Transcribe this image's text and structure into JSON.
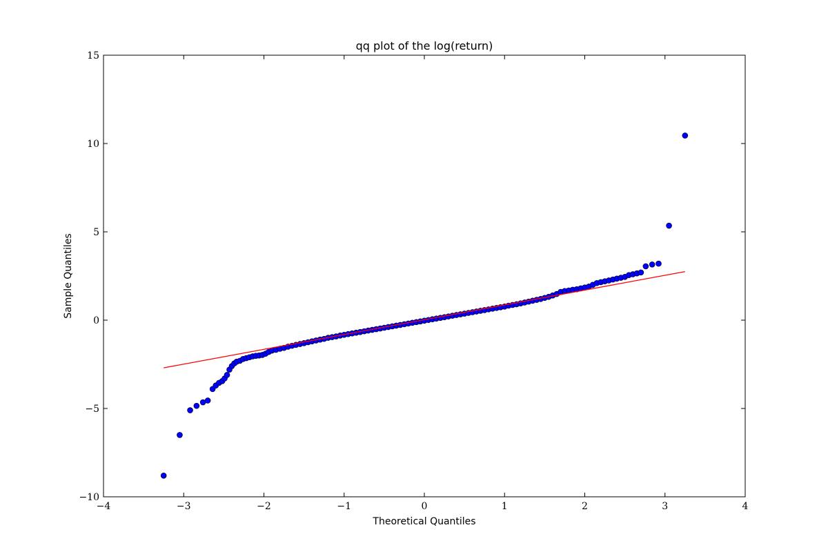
{
  "chart_data": {
    "type": "scatter",
    "title": "qq plot of the log(return)",
    "xlabel": "Theoretical Quantiles",
    "ylabel": "Sample Quantiles",
    "xlim": [
      -4,
      4
    ],
    "ylim": [
      -10,
      15
    ],
    "xticks": [
      -4,
      -3,
      -2,
      -1,
      0,
      1,
      2,
      3,
      4
    ],
    "yticks": [
      -10,
      -5,
      0,
      5,
      10,
      15
    ],
    "xtick_labels": [
      "−4",
      "−3",
      "−2",
      "−1",
      "0",
      "1",
      "2",
      "3",
      "4"
    ],
    "ytick_labels": [
      "−10",
      "−5",
      "0",
      "5",
      "10",
      "15"
    ],
    "grid": false,
    "colors": {
      "points": "#0000ff",
      "point_edge": "#000000",
      "fit_line": "#ff0000"
    },
    "reference_line": {
      "x": [
        -3.25,
        3.25
      ],
      "y": [
        -2.7,
        2.75
      ]
    },
    "series": [
      {
        "points": {
          "x": [
            -3.25,
            -3.05,
            -2.92,
            -2.84,
            -2.76,
            -2.7,
            -2.64,
            -2.6,
            -2.56,
            -2.52,
            -2.49,
            -2.46,
            -2.43,
            -2.4,
            -2.37,
            -2.34,
            -2.3,
            -2.26,
            -2.22,
            -2.18,
            -2.14,
            -2.1,
            -2.06,
            -2.02,
            -1.98,
            -1.94,
            -1.9,
            -1.85,
            -1.8,
            -1.75,
            -1.7,
            -1.65,
            -1.6,
            -1.55,
            -1.5,
            -1.45,
            -1.4,
            -1.35,
            -1.3,
            -1.25,
            -1.2,
            -1.15,
            -1.1,
            -1.05,
            -1.0,
            -0.95,
            -0.9,
            -0.85,
            -0.8,
            -0.75,
            -0.7,
            -0.65,
            -0.6,
            -0.55,
            -0.5,
            -0.45,
            -0.4,
            -0.35,
            -0.3,
            -0.25,
            -0.2,
            -0.15,
            -0.1,
            -0.05,
            0.0,
            0.05,
            0.1,
            0.15,
            0.2,
            0.25,
            0.3,
            0.35,
            0.4,
            0.45,
            0.5,
            0.55,
            0.6,
            0.65,
            0.7,
            0.75,
            0.8,
            0.85,
            0.9,
            0.95,
            1.0,
            1.05,
            1.1,
            1.15,
            1.2,
            1.25,
            1.3,
            1.35,
            1.4,
            1.45,
            1.5,
            1.55,
            1.6,
            1.65,
            1.7,
            1.75,
            1.8,
            1.85,
            1.9,
            1.95,
            2.0,
            2.05,
            2.1,
            2.15,
            2.2,
            2.25,
            2.3,
            2.35,
            2.4,
            2.45,
            2.5,
            2.55,
            2.6,
            2.65,
            2.7,
            2.76,
            2.84,
            2.92,
            3.05,
            3.25
          ],
          "y": [
            -8.8,
            -6.5,
            -5.1,
            -4.85,
            -4.65,
            -4.55,
            -3.9,
            -3.7,
            -3.55,
            -3.45,
            -3.3,
            -3.1,
            -2.8,
            -2.6,
            -2.45,
            -2.35,
            -2.3,
            -2.2,
            -2.15,
            -2.1,
            -2.05,
            -2.02,
            -2.0,
            -1.97,
            -1.9,
            -1.8,
            -1.72,
            -1.68,
            -1.62,
            -1.57,
            -1.5,
            -1.45,
            -1.4,
            -1.35,
            -1.3,
            -1.25,
            -1.2,
            -1.15,
            -1.1,
            -1.06,
            -1.0,
            -0.96,
            -0.92,
            -0.87,
            -0.83,
            -0.79,
            -0.75,
            -0.71,
            -0.67,
            -0.63,
            -0.59,
            -0.55,
            -0.51,
            -0.47,
            -0.43,
            -0.39,
            -0.35,
            -0.31,
            -0.27,
            -0.23,
            -0.19,
            -0.15,
            -0.11,
            -0.07,
            -0.03,
            0.01,
            0.05,
            0.09,
            0.13,
            0.17,
            0.21,
            0.25,
            0.29,
            0.33,
            0.37,
            0.41,
            0.45,
            0.49,
            0.53,
            0.57,
            0.61,
            0.65,
            0.69,
            0.73,
            0.77,
            0.82,
            0.86,
            0.9,
            0.95,
            1.0,
            1.05,
            1.1,
            1.15,
            1.2,
            1.26,
            1.32,
            1.4,
            1.48,
            1.6,
            1.65,
            1.68,
            1.72,
            1.75,
            1.8,
            1.85,
            1.9,
            2.0,
            2.1,
            2.15,
            2.2,
            2.25,
            2.3,
            2.35,
            2.4,
            2.45,
            2.55,
            2.6,
            2.65,
            2.7,
            3.05,
            3.15,
            3.2,
            5.35,
            10.45
          ]
        }
      }
    ]
  }
}
